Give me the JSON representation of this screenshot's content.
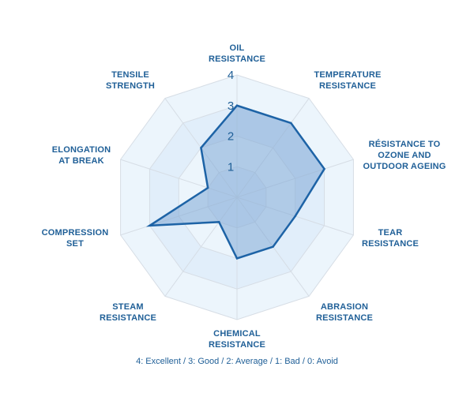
{
  "chart_data": {
    "type": "radar",
    "title": "",
    "axes": [
      {
        "lines": [
          "OIL",
          "RESISTANCE"
        ]
      },
      {
        "lines": [
          "TEMPERATURE",
          "RESISTANCE"
        ]
      },
      {
        "lines": [
          "RÉSISTANCE TO",
          "OZONE AND",
          "OUTDOOR AGEING"
        ]
      },
      {
        "lines": [
          "TEAR",
          "RESISTANCE"
        ]
      },
      {
        "lines": [
          "ABRASION",
          "RESISTANCE"
        ]
      },
      {
        "lines": [
          "CHEMICAL",
          "RESISTANCE"
        ]
      },
      {
        "lines": [
          "STEAM",
          "RESISTANCE"
        ]
      },
      {
        "lines": [
          "COMPRESSION",
          "SET"
        ]
      },
      {
        "lines": [
          "ELONGATION",
          "AT BREAK"
        ]
      },
      {
        "lines": [
          "TENSILE",
          "STRENGTH"
        ]
      }
    ],
    "series": [
      {
        "values": [
          3,
          3,
          3,
          2,
          2,
          2,
          1,
          3,
          1,
          2
        ]
      }
    ],
    "range": [
      0,
      4
    ],
    "ticks": [
      "1",
      "2",
      "3",
      "4"
    ],
    "legend": "4: Excellent / 3: Good / 2: Average / 1: Bad / 0: Avoid",
    "colors": {
      "fill": "#7fa8d6",
      "stroke": "#1d63a6",
      "grid": "#d6dde5",
      "band_light": "#ecf5fc",
      "band_dark": "#e1eefa",
      "text": "#1f5f97"
    }
  }
}
